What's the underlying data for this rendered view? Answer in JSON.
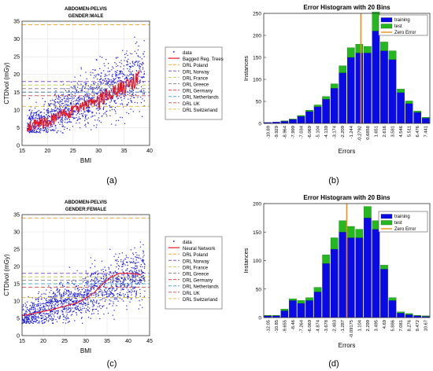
{
  "captions": [
    "(a)",
    "(b)",
    "(c)",
    "(d)"
  ],
  "colors": {
    "scatter": "#1a1adb",
    "fit": "#e8141e",
    "training": "#0a0ae6",
    "test": "#22b81e",
    "zero_error": "#e8901a",
    "drl": {
      "DRL Poland": "#f0a830",
      "DRL Norway": "#8a5ac8",
      "DRL France": "#c8c860",
      "DRL Greece": "#909090",
      "DRL Germany": "#e04848",
      "DRL Netherlands": "#50a8d0",
      "DRL UK": "#d86060",
      "DRL Switzerland": "#e0c050"
    }
  },
  "chart_data": [
    {
      "id": "a",
      "type": "scatter",
      "title_line1": "ABDOMEN-PELVIS",
      "title_line2": "GENDER:MALE",
      "xlabel": "BMI",
      "ylabel": "CTDIvol (mGy)",
      "xlim": [
        15,
        40
      ],
      "ylim": [
        0,
        35
      ],
      "xticks": [
        15,
        20,
        25,
        30,
        35,
        40
      ],
      "yticks": [
        0,
        5,
        10,
        15,
        20,
        25,
        30,
        35
      ],
      "grid": true,
      "legend_position": "right-outside",
      "scatter_name": "data",
      "fit_name": "Bagged Reg. Trees",
      "fit_style": "jagged",
      "fit_x": [
        16,
        18,
        20,
        21,
        22,
        23,
        24,
        25,
        26,
        27,
        28,
        29,
        30,
        31,
        32,
        33,
        34,
        35,
        36,
        37,
        38
      ],
      "fit_y": [
        5.5,
        6.0,
        6.5,
        7.2,
        8.0,
        8.5,
        9.0,
        9.8,
        10.5,
        11.0,
        11.5,
        12.0,
        12.5,
        13.5,
        14.5,
        15.0,
        16.0,
        16.5,
        17.5,
        18.0,
        19.5
      ],
      "scatter_cloud": {
        "x_range": [
          16,
          39
        ],
        "n": 1400,
        "y_center": [
          5,
          20
        ],
        "y_spread": 4
      },
      "drl": [
        {
          "name": "DRL Poland",
          "value": 34
        },
        {
          "name": "DRL Norway",
          "value": 18
        },
        {
          "name": "DRL France",
          "value": 17
        },
        {
          "name": "DRL Greece",
          "value": 16
        },
        {
          "name": "DRL Germany",
          "value": 15
        },
        {
          "name": "DRL Netherlands",
          "value": 15
        },
        {
          "name": "DRL UK",
          "value": 14
        },
        {
          "name": "DRL Switzerland",
          "value": 11
        }
      ]
    },
    {
      "id": "b",
      "type": "bar",
      "title": "Error Histogram with 20 Bins",
      "xlabel": "Errors",
      "ylabel": "Instances",
      "ylim": [
        0,
        250
      ],
      "yticks": [
        0,
        50,
        100,
        150,
        200,
        250
      ],
      "legend_position": "top-right",
      "categories": [
        "-10.89",
        "-9.929",
        "-8.964",
        "-7.999",
        "-7.034",
        "-6.069",
        "-5.104",
        "-4.139",
        "-3.174",
        "-2.209",
        "-1.244",
        "-0.2792",
        "0.6858",
        "1.651",
        "2.616",
        "3.581",
        "4.546",
        "5.511",
        "6.476",
        "7.441"
      ],
      "series": [
        {
          "name": "training",
          "values": [
            2,
            3,
            5,
            9,
            16,
            27,
            38,
            55,
            80,
            115,
            150,
            160,
            160,
            210,
            165,
            145,
            70,
            45,
            25,
            12
          ]
        },
        {
          "name": "test",
          "values": [
            0,
            0,
            1,
            1,
            2,
            3,
            4,
            6,
            10,
            16,
            22,
            20,
            15,
            43,
            20,
            20,
            8,
            6,
            3,
            2
          ]
        }
      ],
      "zero_error_name": "Zero Error",
      "zero_error_bin": 11.7
    },
    {
      "id": "c",
      "type": "scatter",
      "title_line1": "ABDOMEN-PELVIS",
      "title_line2": "GENDER:FEMALE",
      "xlabel": "BMI",
      "ylabel": "CTDIvol (mGy)",
      "xlim": [
        15,
        45
      ],
      "ylim": [
        0,
        35
      ],
      "xticks": [
        15,
        20,
        25,
        30,
        35,
        40,
        45
      ],
      "yticks": [
        0,
        5,
        10,
        15,
        20,
        25,
        30,
        35
      ],
      "grid": true,
      "legend_position": "right-outside",
      "scatter_name": "data",
      "fit_name": "Neural Network",
      "fit_style": "smooth",
      "fit_x": [
        15,
        17,
        20,
        22,
        25,
        28,
        30,
        32,
        34,
        36,
        38,
        40,
        42,
        43
      ],
      "fit_y": [
        5.8,
        6.2,
        7.0,
        7.5,
        8.5,
        9.5,
        10.8,
        12.5,
        15.0,
        17.0,
        18.0,
        18.0,
        17.8,
        17.5
      ],
      "scatter_cloud": {
        "x_range": [
          15,
          44
        ],
        "n": 1500,
        "y_center": [
          5,
          18
        ],
        "y_spread": 3.5
      },
      "drl": [
        {
          "name": "DRL Poland",
          "value": 34
        },
        {
          "name": "DRL Norway",
          "value": 18
        },
        {
          "name": "DRL France",
          "value": 17
        },
        {
          "name": "DRL Greece",
          "value": 16
        },
        {
          "name": "DRL Germany",
          "value": 15
        },
        {
          "name": "DRL Netherlands",
          "value": 15
        },
        {
          "name": "DRL UK",
          "value": 14
        },
        {
          "name": "DRL Switzerland",
          "value": 11
        }
      ]
    },
    {
      "id": "d",
      "type": "bar",
      "title": "Error Histogram with 20 Bins",
      "xlabel": "Errors",
      "ylabel": "Instances",
      "ylim": [
        0,
        200
      ],
      "yticks": [
        0,
        50,
        100,
        150,
        200
      ],
      "legend_position": "top-right",
      "categories": [
        "-12.05",
        "-10.85",
        "-9.655",
        "-8.46",
        "-7.264",
        "-6.069",
        "-4.874",
        "-3.678",
        "-2.483",
        "-1.287",
        "-0.09175",
        "1.104",
        "2.299",
        "3.495",
        "4.69",
        "5.886",
        "7.081",
        "8.276",
        "9.472",
        "10.67"
      ],
      "series": [
        {
          "name": "training",
          "values": [
            3,
            3,
            12,
            30,
            25,
            30,
            45,
            95,
            120,
            150,
            140,
            140,
            175,
            155,
            85,
            30,
            8,
            5,
            3,
            2
          ]
        },
        {
          "name": "test",
          "values": [
            1,
            1,
            3,
            3,
            5,
            5,
            8,
            15,
            20,
            20,
            20,
            15,
            20,
            15,
            7,
            5,
            2,
            2,
            1,
            1
          ]
        }
      ],
      "zero_error_name": "Zero Error",
      "zero_error_bin": 10.0
    }
  ]
}
